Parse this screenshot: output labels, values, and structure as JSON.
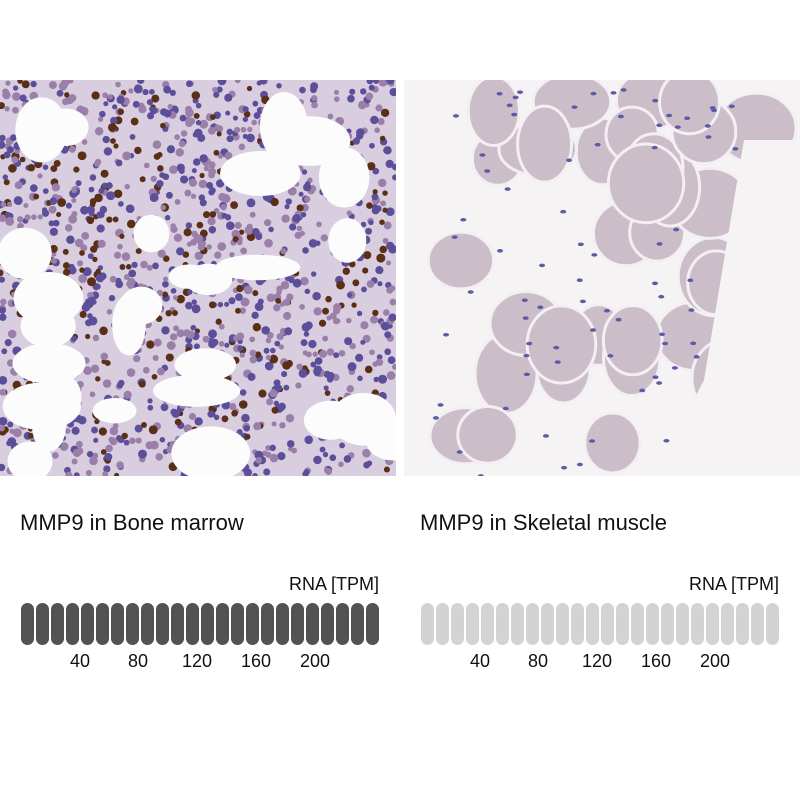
{
  "panels": [
    {
      "title": "MMP9 in Bone marrow",
      "tissue": "Bone marrow",
      "rna_label": "RNA [TPM]",
      "filled_fraction": 1.0,
      "bar_color": "#525252"
    },
    {
      "title": "MMP9 in Skeletal muscle",
      "tissue": "Skeletal muscle",
      "rna_label": "RNA [TPM]",
      "filled_fraction": 0.0,
      "bar_color": "#d3d3d3"
    }
  ],
  "chart_data": [
    {
      "type": "bar",
      "title": "MMP9 in Bone marrow",
      "ylabel": "RNA [TPM]",
      "tick_labels": [
        "40",
        "80",
        "120",
        "160",
        "200"
      ],
      "segments": 24,
      "filled_segments": 24
    },
    {
      "type": "bar",
      "title": "MMP9 in Skeletal muscle",
      "ylabel": "RNA [TPM]",
      "tick_labels": [
        "40",
        "80",
        "120",
        "160",
        "200"
      ],
      "segments": 24,
      "filled_segments": 0
    }
  ]
}
